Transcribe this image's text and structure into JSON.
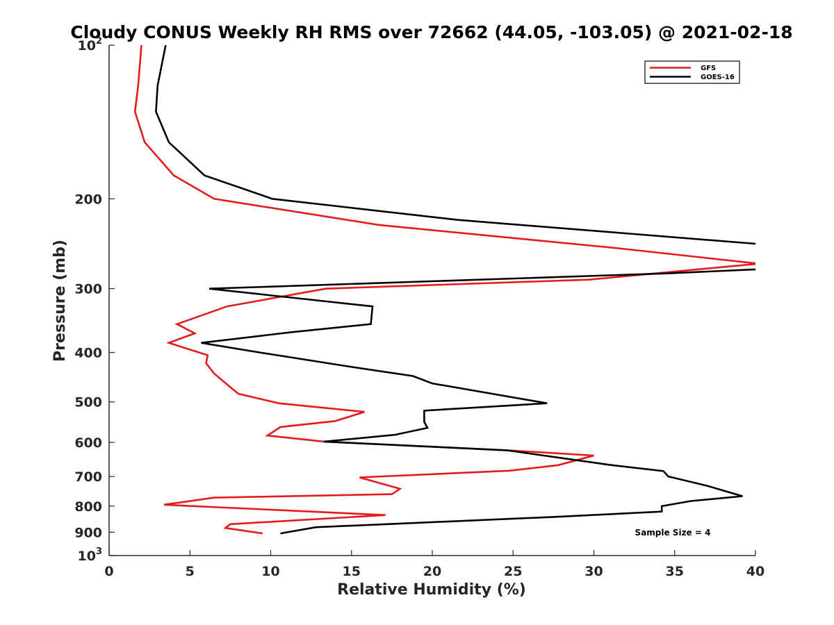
{
  "chart_data": {
    "type": "line",
    "title": "Cloudy CONUS Weekly RH RMS over 72662 (44.05, -103.05) @ 2021-02-18",
    "xlabel": "Relative Humidity (%)",
    "ylabel": "Pressure (mb)",
    "xlim": [
      0,
      40
    ],
    "ylim": [
      100,
      1000
    ],
    "y_scale": "log",
    "y_reversed": true,
    "grid": false,
    "legend_position": "top-right",
    "annotation": "Sample Size = 4",
    "x_ticks": [
      "0",
      "5",
      "10",
      "15",
      "20",
      "25",
      "30",
      "35",
      "40"
    ],
    "y_ticks": [
      {
        "value": 100,
        "base": "10",
        "exp": "2"
      },
      {
        "value": 200,
        "label": "200"
      },
      {
        "value": 300,
        "label": "300"
      },
      {
        "value": 400,
        "label": "400"
      },
      {
        "value": 500,
        "label": "500"
      },
      {
        "value": 600,
        "label": "600"
      },
      {
        "value": 700,
        "label": "700"
      },
      {
        "value": 800,
        "label": "800"
      },
      {
        "value": 900,
        "label": "900"
      },
      {
        "value": 1000,
        "base": "10",
        "exp": "3"
      }
    ],
    "series": [
      {
        "name": "GFS",
        "color": "#e41a1c",
        "points": [
          [
            2.0,
            100
          ],
          [
            1.8,
            120
          ],
          [
            1.6,
            135
          ],
          [
            2.2,
            155
          ],
          [
            4.0,
            180
          ],
          [
            6.5,
            200
          ],
          [
            16.7,
            225
          ],
          [
            31.5,
            250
          ],
          [
            40.2,
            268
          ],
          [
            29.7,
            288
          ],
          [
            13.4,
            300
          ],
          [
            7.3,
            325
          ],
          [
            4.2,
            352
          ],
          [
            5.3,
            367
          ],
          [
            3.7,
            383
          ],
          [
            6.1,
            405
          ],
          [
            6.0,
            420
          ],
          [
            6.5,
            440
          ],
          [
            7.4,
            465
          ],
          [
            8.0,
            482
          ],
          [
            10.5,
            503
          ],
          [
            15.8,
            523
          ],
          [
            14.0,
            545
          ],
          [
            10.6,
            560
          ],
          [
            9.8,
            582
          ],
          [
            13.3,
            598
          ],
          [
            25.0,
            623
          ],
          [
            30.0,
            637
          ],
          [
            27.8,
            665
          ],
          [
            24.8,
            682
          ],
          [
            15.5,
            703
          ],
          [
            18.0,
            740
          ],
          [
            17.5,
            758
          ],
          [
            6.5,
            770
          ],
          [
            3.4,
            795
          ],
          [
            17.1,
            833
          ],
          [
            7.5,
            868
          ],
          [
            7.2,
            883
          ],
          [
            9.5,
            905
          ]
        ]
      },
      {
        "name": "GOES-16",
        "color": "#000000",
        "points": [
          [
            3.5,
            100
          ],
          [
            3.0,
            120
          ],
          [
            2.9,
            135
          ],
          [
            3.7,
            155
          ],
          [
            5.9,
            180
          ],
          [
            10.1,
            200
          ],
          [
            21.6,
            220
          ],
          [
            40.0,
            245
          ],
          [
            43.5,
            255
          ],
          [
            40.0,
            275
          ],
          [
            34.5,
            280
          ],
          [
            6.2,
            300
          ],
          [
            16.3,
            325
          ],
          [
            16.2,
            352
          ],
          [
            11.3,
            365
          ],
          [
            5.7,
            383
          ],
          [
            9.3,
            400
          ],
          [
            14.6,
            425
          ],
          [
            18.8,
            445
          ],
          [
            20.0,
            460
          ],
          [
            27.1,
            503
          ],
          [
            19.5,
            520
          ],
          [
            19.5,
            547
          ],
          [
            19.7,
            562
          ],
          [
            17.7,
            580
          ],
          [
            13.3,
            598
          ],
          [
            24.6,
            622
          ],
          [
            31.1,
            665
          ],
          [
            34.3,
            683
          ],
          [
            34.6,
            700
          ],
          [
            37.0,
            730
          ],
          [
            39.2,
            765
          ],
          [
            36.0,
            782
          ],
          [
            34.2,
            800
          ],
          [
            34.2,
            820
          ],
          [
            27.6,
            840
          ],
          [
            12.8,
            880
          ],
          [
            10.6,
            905
          ]
        ]
      }
    ]
  }
}
